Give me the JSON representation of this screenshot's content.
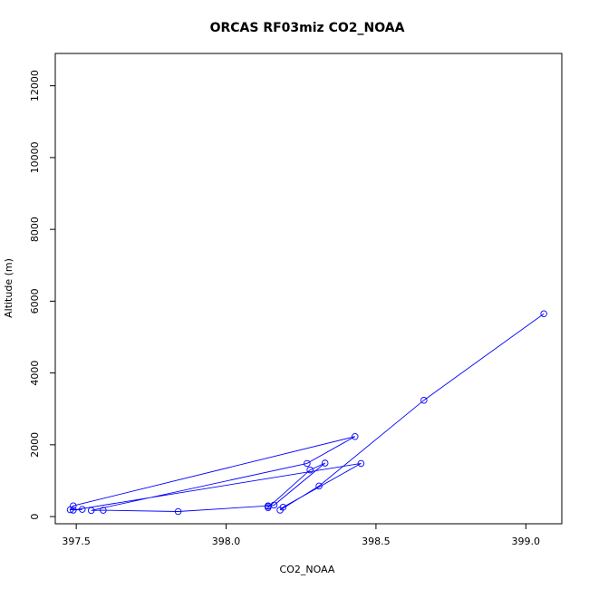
{
  "chart_data": {
    "type": "line",
    "title": "ORCAS RF03miz CO2_NOAA",
    "xlabel": "CO2_NOAA",
    "ylabel": "Altitude (m)",
    "xlim": [
      397.43,
      399.12
    ],
    "ylim": [
      -200,
      12900
    ],
    "x_ticks": [
      397.5,
      398.0,
      398.5,
      399.0
    ],
    "x_tick_labels": [
      "397.5",
      "398.0",
      "398.5",
      "399.0"
    ],
    "y_ticks": [
      0,
      2000,
      4000,
      6000,
      8000,
      10000,
      12000
    ],
    "y_tick_labels": [
      "0",
      "2000",
      "4000",
      "6000",
      "8000",
      "10000",
      "12000"
    ],
    "grid": false,
    "series": [
      {
        "color": "#0000ff",
        "marker": "open-circle",
        "points": [
          [
            399.06,
            5650
          ],
          [
            398.66,
            3240
          ],
          [
            398.31,
            850
          ],
          [
            398.18,
            180
          ],
          [
            398.19,
            260
          ],
          [
            398.45,
            1480
          ],
          [
            397.49,
            180
          ],
          [
            397.52,
            200
          ],
          [
            397.48,
            190
          ],
          [
            397.49,
            300
          ],
          [
            398.43,
            2230
          ],
          [
            398.27,
            1480
          ],
          [
            397.55,
            170
          ],
          [
            397.59,
            175
          ],
          [
            397.84,
            140
          ],
          [
            398.14,
            300
          ],
          [
            398.14,
            250
          ],
          [
            398.28,
            1300
          ],
          [
            398.33,
            1490
          ],
          [
            398.16,
            320
          ],
          [
            398.14,
            290
          ]
        ]
      }
    ]
  }
}
